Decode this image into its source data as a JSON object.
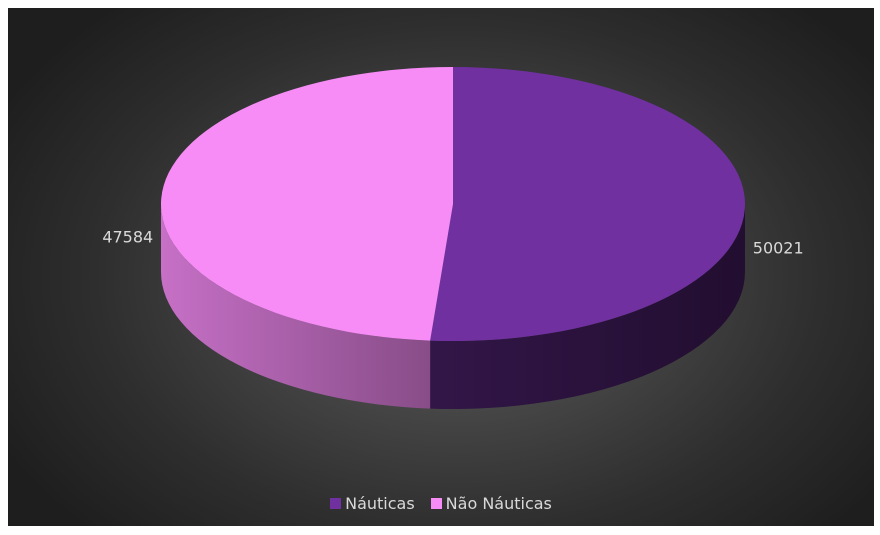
{
  "chart_data": {
    "type": "pie",
    "title": "",
    "series": [
      {
        "name": "Náuticas",
        "value": 50021,
        "color": "#7030a0"
      },
      {
        "name": "Não Náuticas",
        "value": 47584,
        "color": "#f78cf7"
      }
    ],
    "data_labels": [
      "50021",
      "47584"
    ],
    "legend_position": "bottom",
    "style": "3d"
  },
  "legend": {
    "items": [
      {
        "label": "Náuticas",
        "color": "#7030a0"
      },
      {
        "label": "Não Náuticas",
        "color": "#f78cf7"
      }
    ]
  }
}
